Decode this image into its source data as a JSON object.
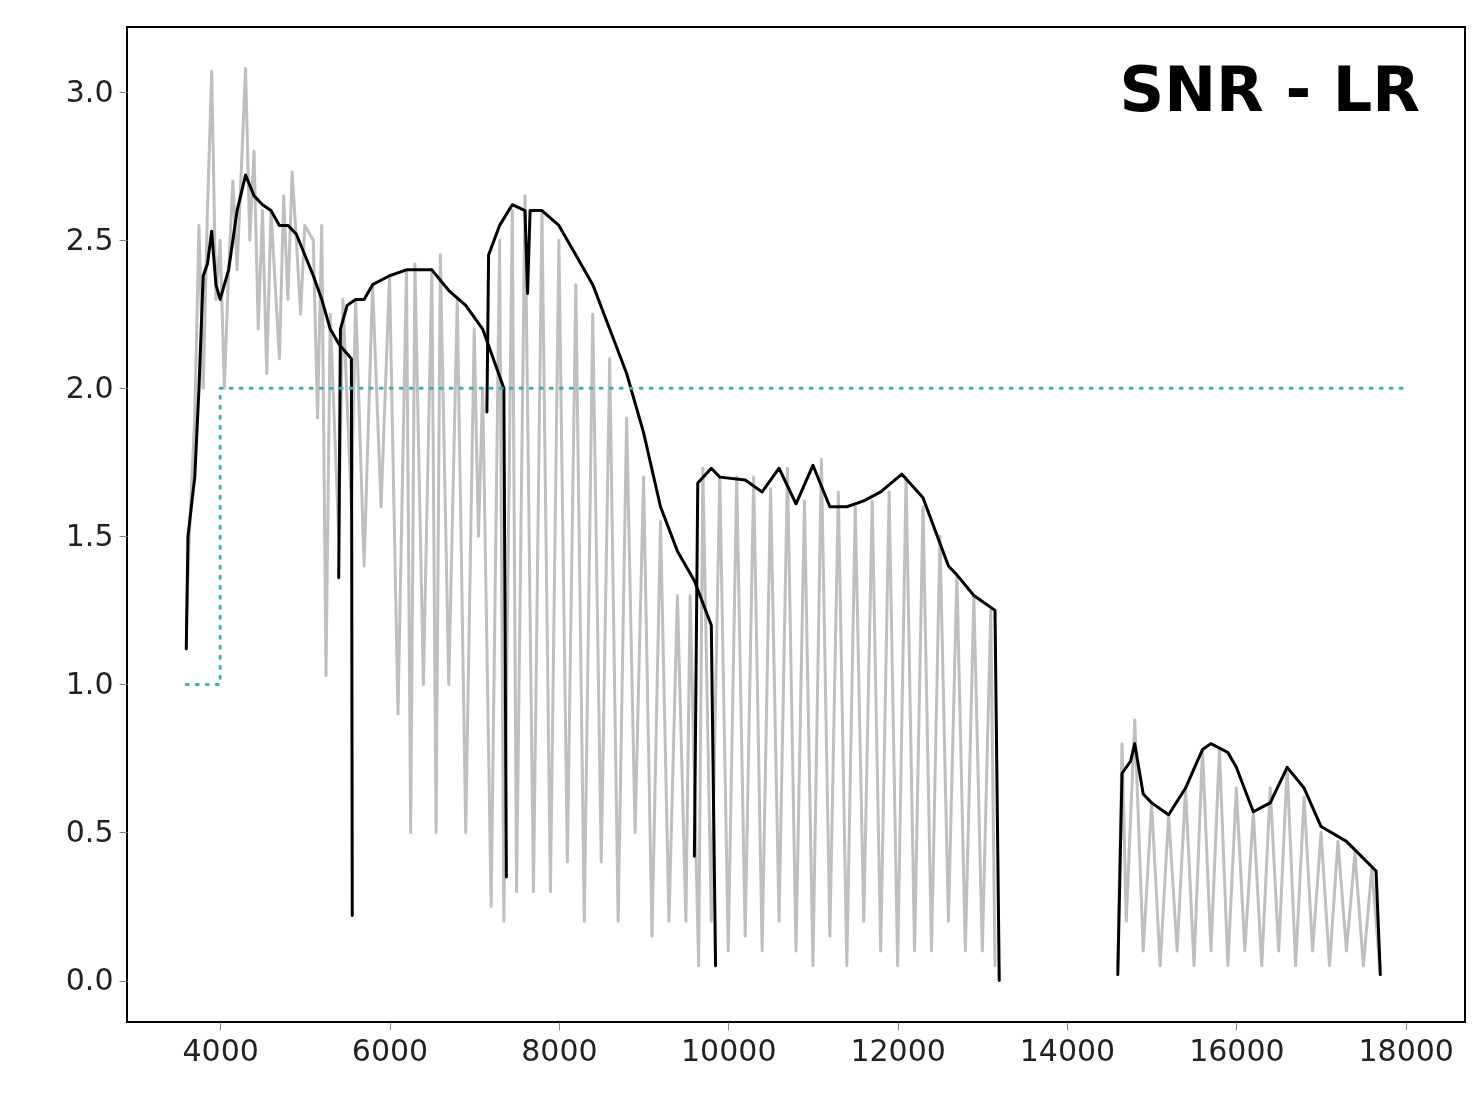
{
  "chart_data": {
    "type": "line",
    "title": "SNR - LR",
    "xlim": [
      2900,
      18700
    ],
    "ylim": [
      -0.14,
      3.22
    ],
    "xticks": [
      4000,
      6000,
      8000,
      10000,
      12000,
      14000,
      16000,
      18000
    ],
    "yticks": [
      {
        "value": 0,
        "label": "0.0"
      },
      {
        "value": 0.5,
        "label": "0.5"
      },
      {
        "value": 1,
        "label": "1.0"
      },
      {
        "value": 1.5,
        "label": "1.5"
      },
      {
        "value": 2,
        "label": "2.0"
      },
      {
        "value": 2.5,
        "label": "2.5"
      },
      {
        "value": 3,
        "label": "3.0"
      }
    ],
    "series": [
      {
        "color": "#bfbfbf",
        "x": [
          3600,
          3650,
          3700,
          3750,
          3800,
          3850,
          3900,
          3950,
          4000,
          4050,
          4100,
          4150,
          4200,
          4300,
          4350,
          4400,
          4450,
          4500,
          4550,
          4600,
          4700,
          4750,
          4800,
          4850,
          4900,
          4950,
          5000,
          5100,
          5150,
          5200,
          5250,
          5300,
          5400,
          5450,
          5550,
          5600,
          5700,
          5800,
          5900,
          6000,
          6100,
          6200,
          6250,
          6300,
          6400,
          6500,
          6550,
          6600,
          6700,
          6800,
          6900,
          7000,
          7050,
          7100,
          7200,
          7300,
          7350,
          7450,
          7500,
          7600,
          7700,
          7800,
          7900,
          8000,
          8100,
          8200,
          8300,
          8400,
          8500,
          8600,
          8700,
          8800,
          8900,
          9000,
          9100,
          9200,
          9300,
          9400,
          9500,
          9550,
          9650,
          9700,
          9800,
          9900,
          10000,
          10100,
          10200,
          10300,
          10400,
          10500,
          10600,
          10700,
          10800,
          10900,
          11000,
          11100,
          11200,
          11300,
          11400,
          11500,
          11600,
          11700,
          11800,
          11900,
          12000,
          12100,
          12200,
          12300,
          12400,
          12500,
          12600,
          12700,
          12800,
          12900,
          13000,
          13100,
          13150
        ],
        "values": [
          1.2,
          1.6,
          1.9,
          2.55,
          2.0,
          2.6,
          3.07,
          2.3,
          2.5,
          2.0,
          2.4,
          2.7,
          2.4,
          3.08,
          2.5,
          2.8,
          2.2,
          2.6,
          2.05,
          2.6,
          2.1,
          2.65,
          2.3,
          2.73,
          2.5,
          2.25,
          2.55,
          2.5,
          1.9,
          2.55,
          1.03,
          2.25,
          1.5,
          2.3,
          1.6,
          2.3,
          1.4,
          2.35,
          1.6,
          2.38,
          0.9,
          2.4,
          0.5,
          2.42,
          1.0,
          2.4,
          0.5,
          2.45,
          1.0,
          2.3,
          0.5,
          2.2,
          1.5,
          2.0,
          0.25,
          2.5,
          0.2,
          2.6,
          0.3,
          2.65,
          0.3,
          2.6,
          0.3,
          2.5,
          0.4,
          2.35,
          0.2,
          2.25,
          0.4,
          2.1,
          0.2,
          1.9,
          0.5,
          1.7,
          0.15,
          1.55,
          0.2,
          1.3,
          0.2,
          1.3,
          0.05,
          1.73,
          0.2,
          1.7,
          0.1,
          1.7,
          0.15,
          1.7,
          0.1,
          1.66,
          0.2,
          1.73,
          0.1,
          1.62,
          0.05,
          1.76,
          0.15,
          1.65,
          0.05,
          1.6,
          0.2,
          1.62,
          0.1,
          1.65,
          0.05,
          1.7,
          0.1,
          1.6,
          0.1,
          1.5,
          0.2,
          1.37,
          0.1,
          1.3,
          0.1,
          1.25,
          0.05
        ]
      },
      {
        "color": "#bfbfbf",
        "x": [
          14600,
          14650,
          14700,
          14800,
          14900,
          15000,
          15100,
          15200,
          15300,
          15400,
          15500,
          15600,
          15700,
          15800,
          15900,
          16000,
          16100,
          16200,
          16300,
          16400,
          16500,
          16600,
          16700,
          16800,
          16900,
          17000,
          17100,
          17200,
          17300,
          17400,
          17500,
          17600,
          17700
        ],
        "values": [
          0.05,
          0.8,
          0.2,
          0.88,
          0.1,
          0.6,
          0.05,
          0.56,
          0.1,
          0.65,
          0.05,
          0.78,
          0.1,
          0.78,
          0.05,
          0.65,
          0.1,
          0.57,
          0.05,
          0.65,
          0.1,
          0.72,
          0.05,
          0.62,
          0.1,
          0.5,
          0.05,
          0.47,
          0.1,
          0.43,
          0.05,
          0.38,
          0.02
        ]
      },
      {
        "color": "#000000",
        "x": [
          3600,
          3620,
          3700,
          3750,
          3800,
          3850,
          3900,
          3950,
          4000,
          4100,
          4200,
          4300,
          4400,
          4500,
          4600,
          4700,
          4800,
          4900,
          5000,
          5100,
          5200,
          5300,
          5400,
          5550,
          5560
        ],
        "values": [
          1.12,
          1.5,
          1.7,
          2.0,
          2.38,
          2.42,
          2.53,
          2.35,
          2.3,
          2.4,
          2.6,
          2.72,
          2.65,
          2.62,
          2.6,
          2.55,
          2.55,
          2.52,
          2.45,
          2.38,
          2.3,
          2.2,
          2.15,
          2.1,
          0.22
        ]
      },
      {
        "color": "#000000",
        "x": [
          5400,
          5420,
          5500,
          5600,
          5700,
          5800,
          6000,
          6200,
          6500,
          6700,
          6900,
          7100,
          7250,
          7350,
          7380
        ],
        "values": [
          1.36,
          2.2,
          2.28,
          2.3,
          2.3,
          2.35,
          2.38,
          2.4,
          2.4,
          2.33,
          2.28,
          2.2,
          2.08,
          2.0,
          0.35
        ]
      },
      {
        "color": "#000000",
        "x": [
          7150,
          7170,
          7300,
          7450,
          7600,
          7630,
          7660,
          7800,
          8000,
          8200,
          8400,
          8600,
          8800,
          9000,
          9200,
          9400,
          9600,
          9800,
          9850
        ],
        "values": [
          1.92,
          2.45,
          2.55,
          2.62,
          2.6,
          2.32,
          2.6,
          2.6,
          2.55,
          2.45,
          2.35,
          2.2,
          2.05,
          1.85,
          1.6,
          1.45,
          1.35,
          1.2,
          0.05
        ]
      },
      {
        "color": "#000000",
        "x": [
          9600,
          9640,
          9800,
          9900,
          10200,
          10400,
          10600,
          10800,
          11000,
          11200,
          11400,
          11600,
          11800,
          12050,
          12300,
          12600,
          12700,
          12900,
          13150,
          13200
        ],
        "values": [
          0.42,
          1.68,
          1.73,
          1.7,
          1.69,
          1.65,
          1.73,
          1.61,
          1.74,
          1.6,
          1.6,
          1.62,
          1.65,
          1.71,
          1.63,
          1.4,
          1.37,
          1.3,
          1.25,
          0.0
        ]
      },
      {
        "color": "#000000",
        "x": [
          14600,
          14650,
          14750,
          14800,
          14900,
          15000,
          15200,
          15400,
          15600,
          15700,
          15900,
          16000,
          16200,
          16400,
          16600,
          16800,
          17000,
          17300,
          17650,
          17700
        ],
        "values": [
          0.02,
          0.7,
          0.74,
          0.8,
          0.63,
          0.6,
          0.56,
          0.65,
          0.78,
          0.8,
          0.77,
          0.72,
          0.57,
          0.6,
          0.72,
          0.65,
          0.52,
          0.47,
          0.37,
          0.02
        ]
      },
      {
        "color": "#3fb0b0",
        "line_style": "dotted",
        "x": [
          3600,
          4000,
          4000,
          18000
        ],
        "values": [
          1.0,
          1.0,
          2.0,
          2.0
        ]
      }
    ]
  }
}
